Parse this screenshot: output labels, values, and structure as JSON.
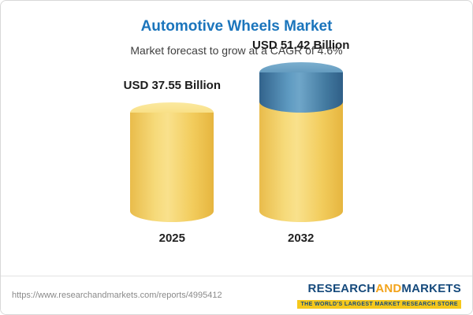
{
  "chart_data": {
    "type": "bar",
    "bar_style": "3d-cylinder",
    "title": "Automotive Wheels Market",
    "subtitle": "Market forecast to grow at a CAGR of 4.6%",
    "categories": [
      "2025",
      "2032"
    ],
    "values": [
      37.55,
      51.42
    ],
    "value_labels": [
      "USD 37.55 Billion",
      "USD 51.42 Billion"
    ],
    "unit": "USD Billion",
    "cagr_percent": 4.6,
    "legend": "none",
    "colors": {
      "title": "#1B75BC",
      "bar_base": "#F2CC5C",
      "bar_growth_segment": "#4381AC"
    }
  },
  "footer": {
    "url": "https://www.researchandmarkets.com/reports/4995412",
    "logo": {
      "research": "RESEARCH",
      "and": "AND",
      "markets": "MARKETS",
      "tagline": "THE WORLD'S LARGEST MARKET RESEARCH STORE"
    }
  }
}
